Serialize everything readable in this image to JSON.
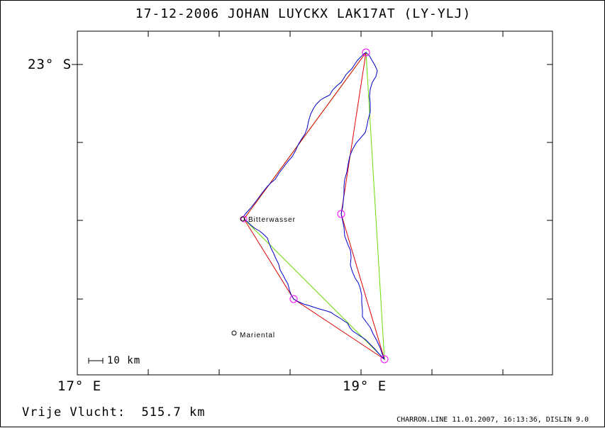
{
  "header": {
    "title": "17-12-2006    JOHAN LUYCKX    LAK17AT (LY-YLJ)"
  },
  "axes": {
    "lat_label": "23° S",
    "lon_labels": [
      "17° E",
      "19° E"
    ]
  },
  "scale_bar": {
    "label": "10 km"
  },
  "places": [
    {
      "name": "Bitterwasser"
    },
    {
      "name": "Mariental"
    }
  ],
  "summary": {
    "label": "Vrije Vlucht:",
    "distance": "515.7 km"
  },
  "footer": {
    "text": "CHARRON.LINE 11.01.2007, 16:13:36, DISLIN 9.0"
  },
  "colors": {
    "track": "#0000cc",
    "task_red": "#e00000",
    "task_green": "#66dd00",
    "turnpoint": "#ff00ff",
    "frame": "#000000"
  }
}
